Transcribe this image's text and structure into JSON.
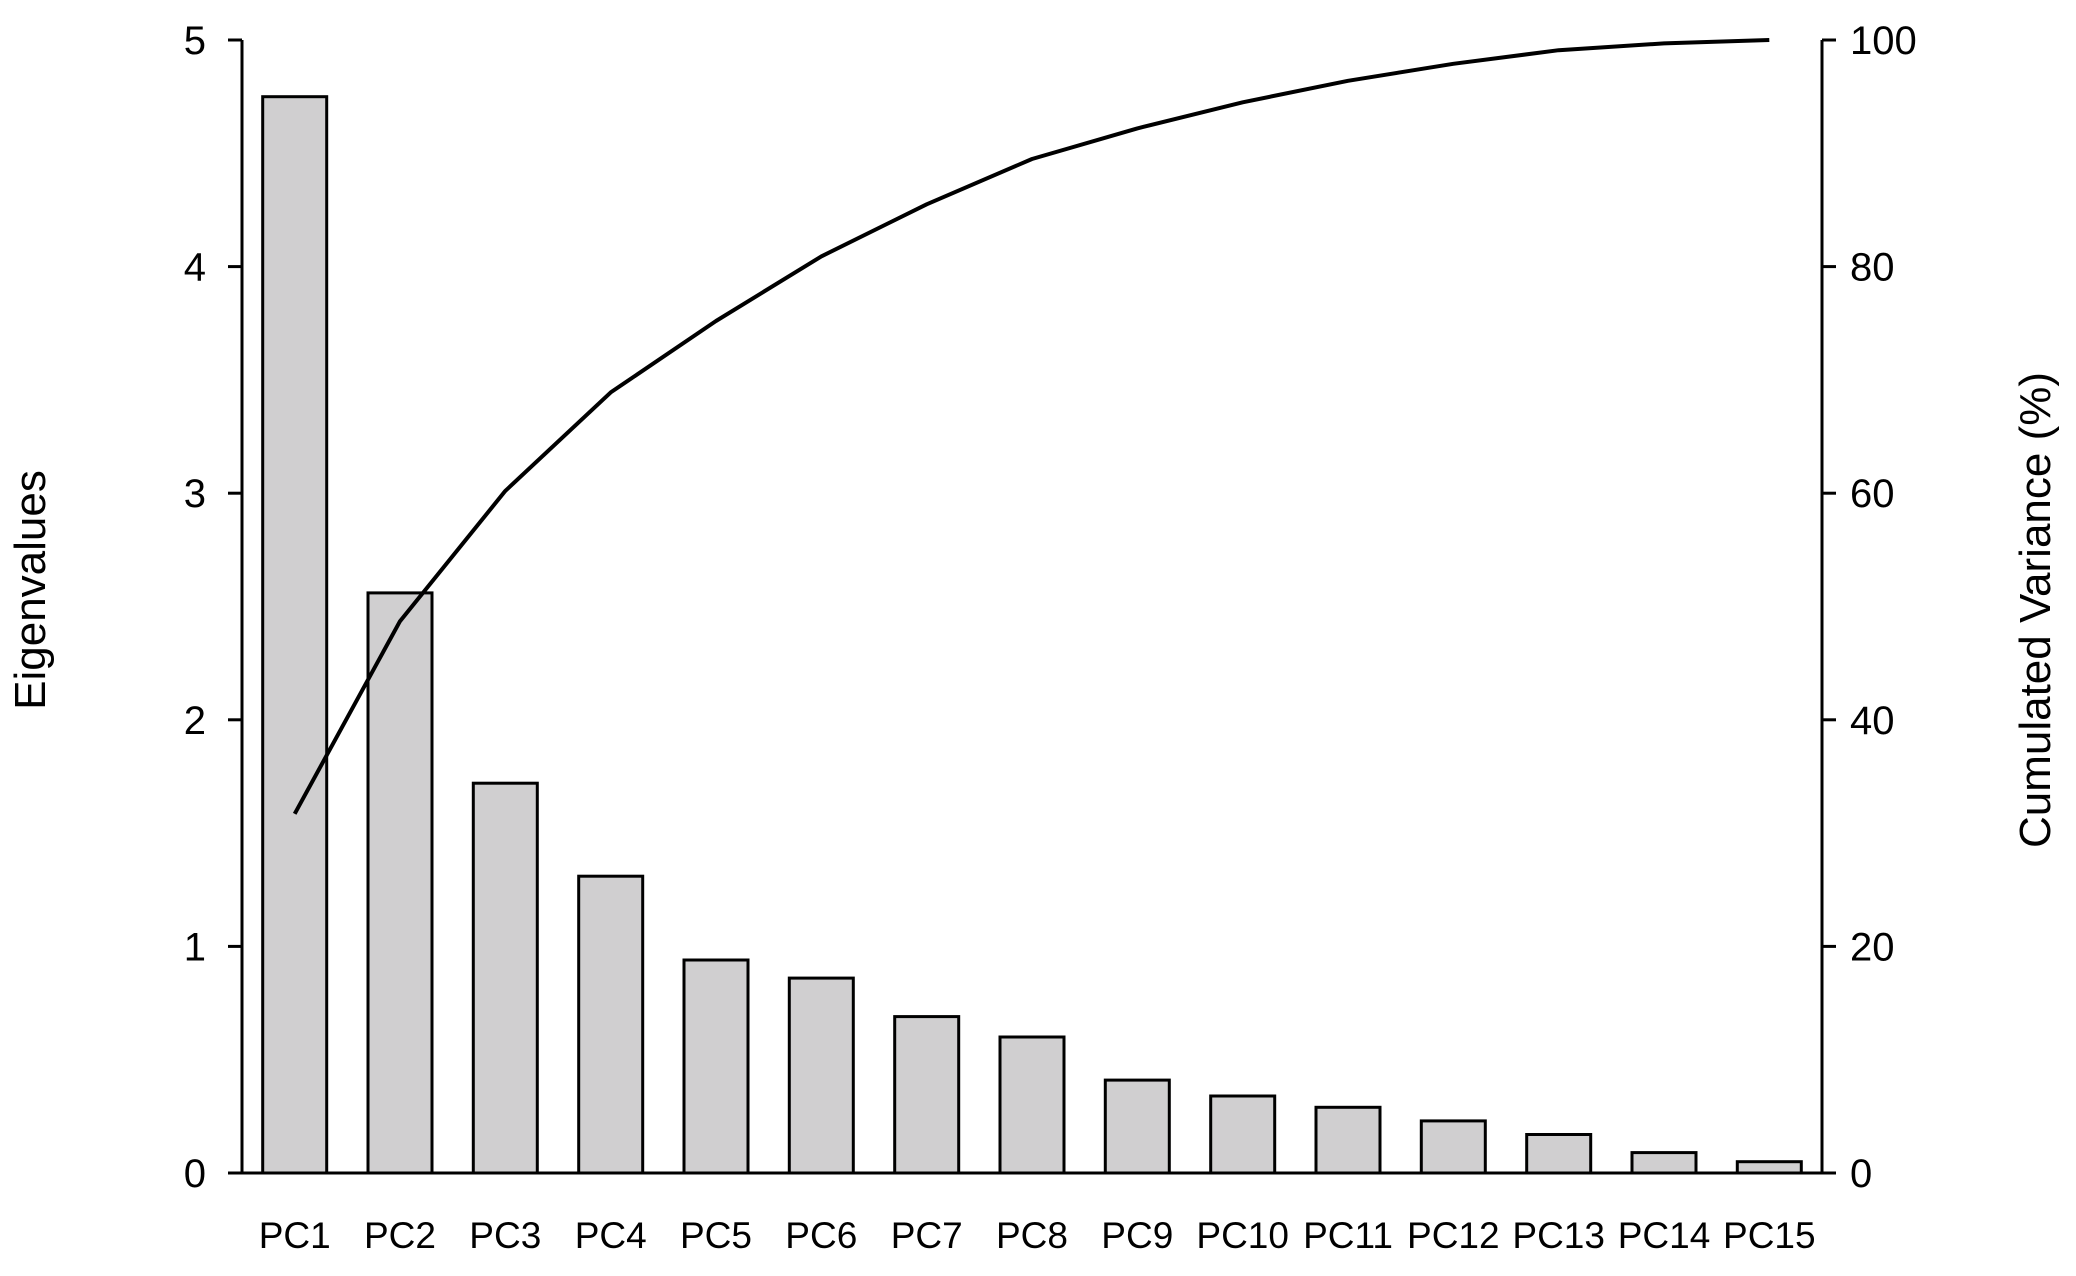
{
  "chart_data": {
    "type": "bar",
    "title": "",
    "categories": [
      "PC1",
      "PC2",
      "PC3",
      "PC4",
      "PC5",
      "PC6",
      "PC7",
      "PC8",
      "PC9",
      "PC10",
      "PC11",
      "PC12",
      "PC13",
      "PC14",
      "PC15"
    ],
    "series": [
      {
        "type": "bar",
        "axis": "left",
        "values": [
          4.75,
          2.56,
          1.72,
          1.31,
          0.94,
          0.86,
          0.69,
          0.6,
          0.41,
          0.34,
          0.29,
          0.23,
          0.17,
          0.09,
          0.05
        ]
      },
      {
        "type": "line",
        "axis": "right",
        "values": [
          31.7,
          48.7,
          60.2,
          68.9,
          75.2,
          80.9,
          85.5,
          89.5,
          92.2,
          94.5,
          96.4,
          97.9,
          99.1,
          99.7,
          100
        ]
      }
    ],
    "ylabel": "Eigenvalues",
    "ylabel_right": "Cumulated Variance (%)",
    "xlabel": "",
    "ylim": [
      0,
      5
    ],
    "ylim_right": [
      0,
      100
    ],
    "yticks": [
      "0",
      "1",
      "2",
      "3",
      "4",
      "5"
    ],
    "yticks_right": [
      "0",
      "20",
      "40",
      "60",
      "80",
      "100"
    ],
    "grid": false,
    "legend": "none",
    "colors": {
      "bar_fill": "#d0cfd0",
      "bar_stroke": "#000000",
      "line": "#000000",
      "axis": "#000000"
    }
  }
}
